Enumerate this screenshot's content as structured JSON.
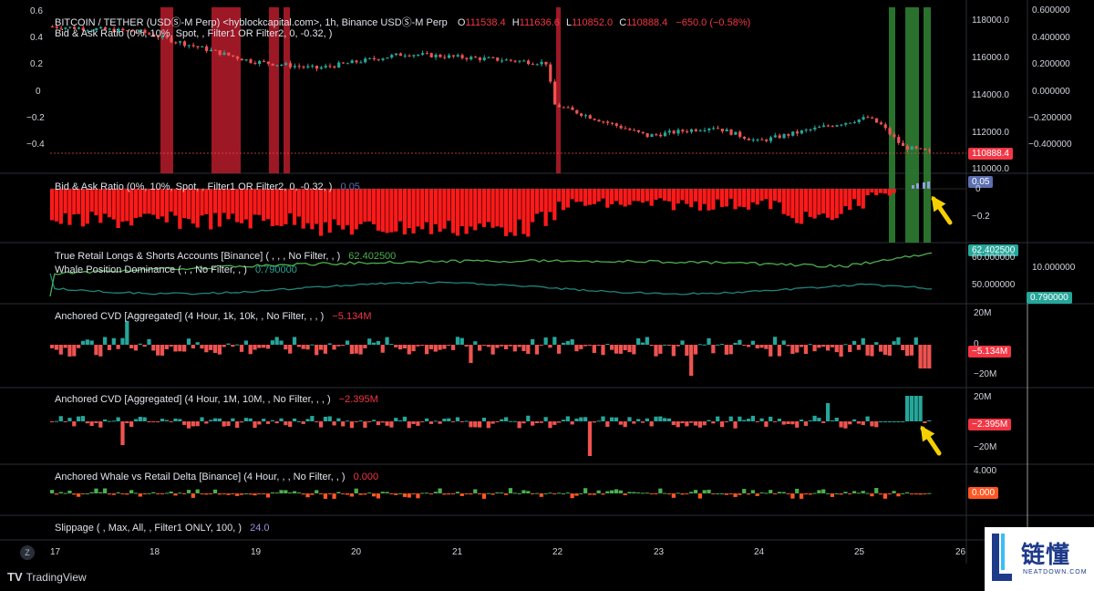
{
  "main": {
    "title": "BITCOIN / TETHER (USDⓈ-M Perp) <hyblockcapital.com>, 1h, Binance USDⓈ-M Perp",
    "ohlc": {
      "o_label": "O",
      "o": "111538.4",
      "h_label": "H",
      "h": "111636.6",
      "l_label": "L",
      "l": "110852.0",
      "c_label": "C",
      "c": "110888.4",
      "change": "−650.0 (−0.58%)"
    },
    "subtitle": "Bid & Ask Ratio (0%, 10%, Spot, , Filter1 OR Filter2, 0, -0.32, )",
    "price_tag": "110888.4",
    "price_ticks": [
      "118000.0",
      "116000.0",
      "114000.0",
      "112000.0",
      "110000.0"
    ],
    "left_ticks": [
      "0.6",
      "0.4",
      "0.2",
      "0",
      "−0.2",
      "−0.4"
    ],
    "right_ticks": [
      "0.600000",
      "0.400000",
      "0.200000",
      "0.000000",
      "−0.200000",
      "−0.400000"
    ]
  },
  "pane_bidask": {
    "label": "Bid & Ask Ratio (0%, 10%, Spot, , Filter1 OR Filter2, 0, -0.32, )",
    "value": "0.05",
    "tag": "0.05",
    "ticks": [
      "0",
      "−0.2"
    ]
  },
  "pane_retail": {
    "label1": "True Retail Longs & Shorts Accounts [Binance] ( , , , No Filter, , )",
    "value1": "62.402500",
    "label2": "Whale Position Dominance ( , , No Filter, , )",
    "value2": "0.790000",
    "tag1": "62.402500",
    "tag2": "0.790000",
    "ticks_left": [
      "60.000000",
      "50.000000"
    ],
    "ticks_right": [
      "10.000000"
    ]
  },
  "pane_cvd1": {
    "label": "Anchored CVD [Aggregated] (4 Hour, 1k, 10k, , No Filter, , , )",
    "value": "−5.134M",
    "tag": "−5.134M",
    "ticks": [
      "20M",
      "0",
      "−20M"
    ]
  },
  "pane_cvd2": {
    "label": "Anchored CVD [Aggregated] (4 Hour, 1M, 10M, , No Filter, , , )",
    "value": "−2.395M",
    "tag": "−2.395M",
    "ticks": [
      "20M",
      "−20M"
    ]
  },
  "pane_whale": {
    "label": "Anchored Whale vs Retail Delta [Binance] (4 Hour, , , No Filter, , )",
    "value": "0.000",
    "tag": "0.000",
    "ticks": [
      "4.000"
    ]
  },
  "pane_slip": {
    "label": "Slippage ( , Max, All, , Filter1 ONLY, 100, )",
    "value": "24.0"
  },
  "time_axis": {
    "labels": [
      "17",
      "18",
      "19",
      "20",
      "21",
      "22",
      "23",
      "24",
      "25",
      "26"
    ],
    "z_button": "Z"
  },
  "brand": {
    "name": "TradingView",
    "mark": "TV"
  },
  "watermark": {
    "cn": "链懂",
    "en": "NEATDOWN.COM"
  },
  "colors": {
    "up": "#26a69a",
    "down": "#ef5350",
    "bar_red": "#ff1a1a",
    "band_red": "#b71c2c",
    "band_green": "#2e7d32",
    "line_green": "#4caf50",
    "arrow": "#f5d000",
    "tag_red": "#f23645",
    "tag_blue": "#5b6fb0",
    "tag_green": "#26a69a"
  }
}
